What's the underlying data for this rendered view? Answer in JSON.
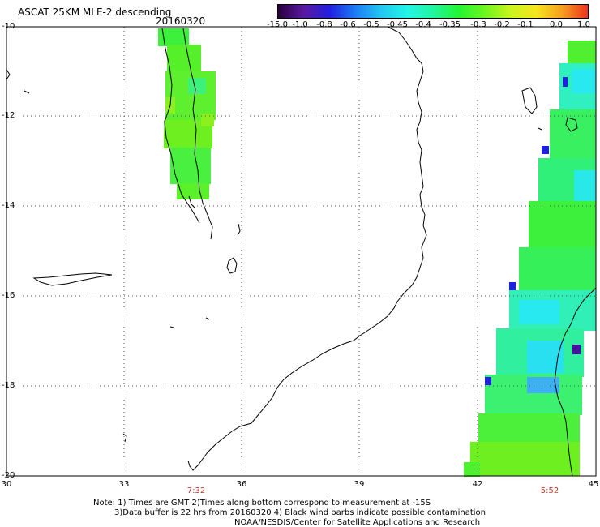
{
  "header": {
    "title": "ASCAT 25KM MLE-2 descending",
    "date": "20160320"
  },
  "colorbar": {
    "labels": [
      "-15.0",
      "-1.0",
      "-0.8",
      "-0.6",
      "-0.5",
      "-0.45",
      "-0.4",
      "-0.35",
      "-0.3",
      "-0.2",
      "-0.1",
      "0.0",
      "1.0"
    ],
    "colors": [
      "#2a003c",
      "#5a1aa0",
      "#2020e0",
      "#1e7cf5",
      "#22c8f0",
      "#22f5e6",
      "#22f5a0",
      "#22f532",
      "#6ef51e",
      "#c8f51e",
      "#f5e61e",
      "#f5a01e",
      "#f0321e"
    ]
  },
  "axes": {
    "y_labels": [
      "-10",
      "-12",
      "-14",
      "-16",
      "-18",
      "-20"
    ],
    "x_labels": [
      "30",
      "33",
      "36",
      "39",
      "42",
      "45"
    ]
  },
  "times": [
    "7:32",
    "5:52"
  ],
  "notes": {
    "line1": "Note: 1) Times are GMT 2)Times along bottom correspond to measurement at -15S",
    "line2": "3)Data buffer is 22 hrs from 20160320 4) Black wind barbs indicate possible contamination",
    "line3": "NOAA/NESDIS/Center for Satellite Applications and Research"
  }
}
